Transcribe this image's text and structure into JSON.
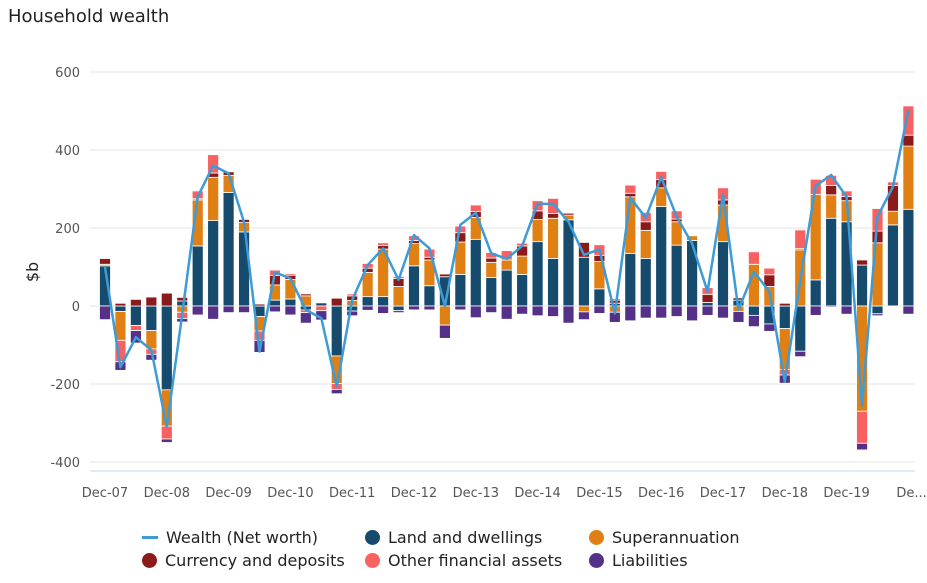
{
  "title": "Household wealth",
  "chart_data": {
    "type": "bar",
    "stacked": true,
    "title": "Household wealth",
    "ylabel": "$b",
    "xlabel": "",
    "ylim": [
      -400,
      600
    ],
    "yticks": [
      600,
      400,
      200,
      0,
      -200,
      -400
    ],
    "grid": true,
    "legend_position": "bottom",
    "x_tick_labels": [
      "Dec-07",
      "Dec-08",
      "Dec-09",
      "Dec-10",
      "Dec-11",
      "Dec-12",
      "Dec-13",
      "Dec-14",
      "Dec-15",
      "Dec-16",
      "Dec-17",
      "Dec-18",
      "Dec-19",
      "De..."
    ],
    "categories": [
      "Dec-07",
      "Mar-08",
      "Jun-08",
      "Sep-08",
      "Dec-08",
      "Mar-09",
      "Jun-09",
      "Sep-09",
      "Dec-09",
      "Mar-10",
      "Jun-10",
      "Sep-10",
      "Dec-10",
      "Mar-11",
      "Jun-11",
      "Sep-11",
      "Dec-11",
      "Mar-12",
      "Jun-12",
      "Sep-12",
      "Dec-12",
      "Mar-13",
      "Jun-13",
      "Sep-13",
      "Dec-13",
      "Mar-14",
      "Jun-14",
      "Sep-14",
      "Dec-14",
      "Mar-15",
      "Jun-15",
      "Sep-15",
      "Dec-15",
      "Mar-16",
      "Jun-16",
      "Sep-16",
      "Dec-16",
      "Mar-17",
      "Jun-17",
      "Sep-17",
      "Dec-17",
      "Mar-18",
      "Jun-18",
      "Sep-18",
      "Dec-18",
      "Mar-19",
      "Jun-19",
      "Sep-19",
      "Dec-19",
      "Mar-20",
      "Jun-20",
      "Sep-20",
      "Dec-20"
    ],
    "series": [
      {
        "name": "Land and dwellings",
        "kind": "bar",
        "color": "#174b6e",
        "values": [
          103,
          -14,
          -50,
          -63,
          -215,
          13,
          154,
          219,
          291,
          190,
          -27,
          15,
          18,
          -10,
          8,
          -128,
          -13,
          24,
          24,
          -12,
          103,
          52,
          75,
          81,
          171,
          73,
          92,
          81,
          165,
          122,
          221,
          125,
          44,
          7,
          135,
          122,
          255,
          156,
          168,
          9,
          165,
          15,
          -24,
          -46,
          -58,
          -116,
          67,
          225,
          216,
          105,
          -20,
          208,
          248
        ]
      },
      {
        "name": "Superannuation",
        "kind": "bar",
        "color": "#e07f14",
        "values": [
          4,
          -74,
          0,
          -47,
          -93,
          -16,
          118,
          111,
          44,
          24,
          -37,
          39,
          50,
          26,
          0,
          -71,
          14,
          62,
          122,
          50,
          57,
          66,
          -49,
          83,
          56,
          39,
          26,
          47,
          57,
          103,
          12,
          -15,
          70,
          -16,
          145,
          72,
          48,
          60,
          12,
          0,
          94,
          -14,
          107,
          50,
          -105,
          144,
          219,
          60,
          54,
          -270,
          162,
          35,
          162
        ]
      },
      {
        "name": "Currency and deposits",
        "kind": "bar",
        "color": "#8b1a1a",
        "values": [
          15,
          7,
          17,
          23,
          33,
          9,
          3,
          11,
          9,
          8,
          5,
          24,
          11,
          5,
          0,
          20,
          12,
          11,
          9,
          21,
          8,
          7,
          7,
          24,
          15,
          11,
          0,
          26,
          22,
          12,
          5,
          38,
          16,
          8,
          9,
          22,
          21,
          7,
          0,
          21,
          13,
          6,
          0,
          30,
          7,
          3,
          0,
          24,
          11,
          13,
          30,
          66,
          28
        ]
      },
      {
        "name": "Other financial assets",
        "kind": "bar",
        "color": "#f96060",
        "values": [
          2,
          -55,
          -13,
          -14,
          -33,
          -16,
          20,
          47,
          0,
          0,
          -24,
          14,
          4,
          -7,
          -12,
          -15,
          5,
          12,
          7,
          5,
          12,
          21,
          0,
          17,
          17,
          14,
          24,
          7,
          26,
          39,
          0,
          0,
          27,
          4,
          21,
          24,
          21,
          21,
          0,
          17,
          31,
          0,
          32,
          17,
          -14,
          48,
          39,
          26,
          14,
          -82,
          58,
          9,
          75
        ]
      },
      {
        "name": "Liabilities",
        "kind": "bar",
        "color": "#553088",
        "values": [
          -35,
          -22,
          -32,
          -15,
          -9,
          -9,
          -23,
          -34,
          -17,
          -17,
          -31,
          -15,
          -23,
          -27,
          -24,
          -11,
          -12,
          -11,
          -19,
          -5,
          -10,
          -10,
          -34,
          -10,
          -30,
          -17,
          -34,
          -21,
          -25,
          -27,
          -44,
          -20,
          -19,
          -26,
          -38,
          -31,
          -31,
          -27,
          -38,
          -24,
          -31,
          -28,
          -29,
          -19,
          -21,
          -14,
          -24,
          -3,
          -21,
          -17,
          -5,
          -2,
          -21
        ]
      },
      {
        "name": "Wealth (Net worth)",
        "kind": "line",
        "color": "#3d9bd6",
        "values": [
          100,
          -157,
          -80,
          -113,
          -310,
          -20,
          280,
          360,
          340,
          215,
          -117,
          86,
          71,
          -10,
          -31,
          -207,
          15,
          105,
          148,
          67,
          182,
          148,
          0,
          208,
          239,
          135,
          121,
          154,
          262,
          262,
          216,
          131,
          145,
          -19,
          278,
          226,
          330,
          229,
          160,
          37,
          285,
          -10,
          88,
          37,
          -194,
          65,
          308,
          336,
          280,
          -255,
          229,
          306,
          502
        ]
      }
    ]
  },
  "legend": [
    {
      "label": "Wealth (Net worth)",
      "color": "#3d9bd6",
      "icon": "line"
    },
    {
      "label": "Land and dwellings",
      "color": "#174b6e",
      "icon": "circle"
    },
    {
      "label": "Superannuation",
      "color": "#e07f14",
      "icon": "circle"
    },
    {
      "label": "Currency and deposits",
      "color": "#8b1a1a",
      "icon": "circle"
    },
    {
      "label": "Other financial assets",
      "color": "#f96060",
      "icon": "circle"
    },
    {
      "label": "Liabilities",
      "color": "#553088",
      "icon": "circle"
    }
  ]
}
